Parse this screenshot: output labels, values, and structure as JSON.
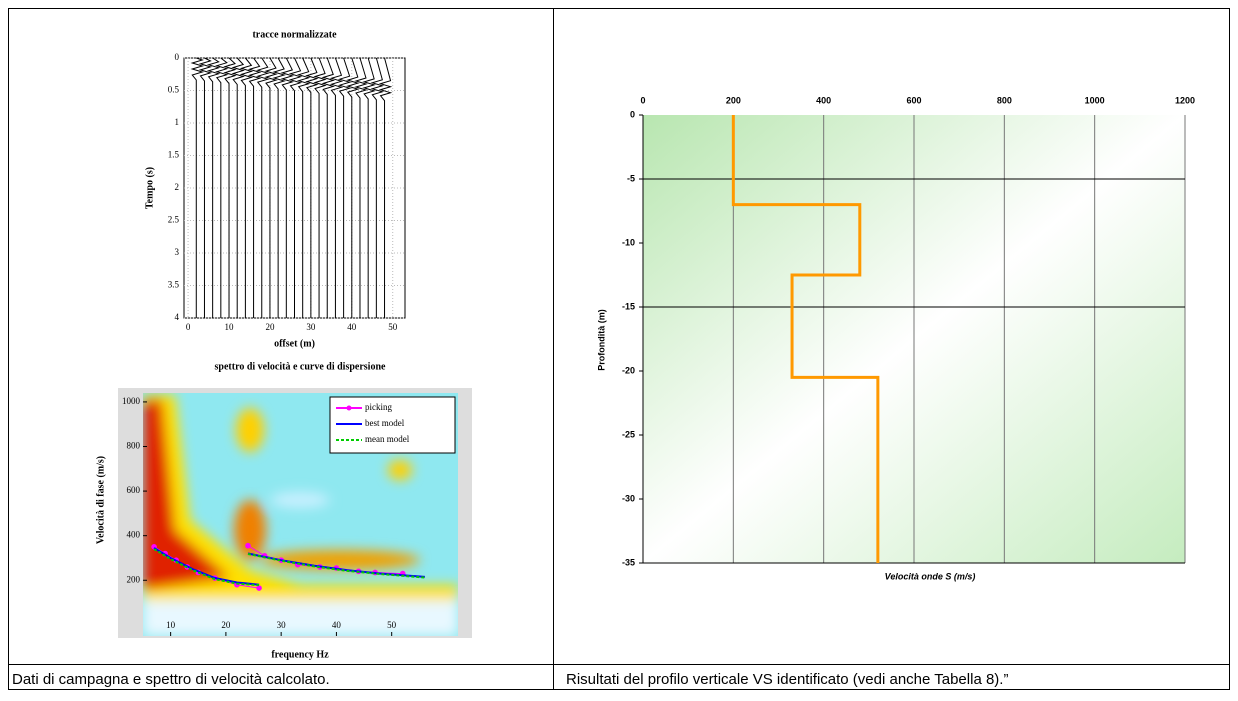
{
  "left_panel": {
    "seismogram": {
      "title": "tracce normalizzate",
      "xlabel": "offset (m)",
      "ylabel": "Tempo (s)",
      "xlim": [
        -1,
        53
      ],
      "ylim": [
        0,
        4
      ],
      "xticks": [
        0,
        10,
        20,
        30,
        40,
        50
      ],
      "yticks": [
        0,
        0.5,
        1,
        1.5,
        2,
        2.5,
        3,
        3.5,
        4
      ],
      "trace_offsets": [
        2,
        4,
        6,
        8,
        10,
        12,
        14,
        16,
        18,
        20,
        22,
        24,
        26,
        28,
        30,
        32,
        34,
        36,
        38,
        40,
        42,
        44,
        46,
        48
      ]
    },
    "dispersion": {
      "title": "spettro di velocità e curve di dispersione",
      "xlabel": "frequency Hz",
      "ylabel": "Velocità di fase (m/s)",
      "xlim": [
        5,
        62
      ],
      "ylim": [
        -50,
        1040
      ],
      "xticks": [
        10,
        20,
        30,
        40,
        50
      ],
      "yticks": [
        200,
        400,
        600,
        800,
        1000
      ],
      "series": [
        {
          "name": "picking",
          "color": "#ff00ff",
          "x": [
            7,
            9,
            11,
            13,
            15,
            18,
            22,
            26,
            null,
            24,
            27,
            30,
            33,
            37,
            40,
            44,
            47,
            52
          ],
          "values": [
            350,
            320,
            290,
            260,
            235,
            210,
            180,
            165,
            null,
            355,
            310,
            290,
            270,
            260,
            255,
            240,
            235,
            230
          ]
        },
        {
          "name": "best model",
          "color": "#0000ff",
          "x": [
            7,
            10,
            14,
            18,
            22,
            26,
            null,
            24,
            30,
            36,
            42,
            48,
            56
          ],
          "values": [
            345,
            300,
            250,
            210,
            190,
            180,
            null,
            320,
            290,
            265,
            245,
            230,
            215
          ]
        },
        {
          "name": "mean model",
          "color": "#00cc00",
          "x": [
            7,
            10,
            14,
            18,
            22,
            26,
            null,
            24,
            30,
            36,
            42,
            48,
            56
          ],
          "values": [
            340,
            295,
            245,
            205,
            185,
            178,
            null,
            318,
            288,
            262,
            242,
            228,
            212
          ]
        }
      ]
    }
  },
  "right_panel": {
    "profile": {
      "xlabel": "Velocità onde S (m/s)",
      "ylabel": "Profondità (m)",
      "xlim": [
        0,
        1200
      ],
      "ylim": [
        -35,
        0
      ],
      "xticks": [
        0,
        200,
        400,
        600,
        800,
        1000,
        1200
      ],
      "yticks": [
        0,
        -5,
        -10,
        -15,
        -20,
        -25,
        -30,
        -35
      ],
      "hgrid": [
        -5,
        -15
      ],
      "color": "#ff9900",
      "x": [
        200,
        200,
        480,
        480,
        330,
        330,
        520,
        520
      ],
      "values": [
        0,
        -7,
        -7,
        -12.5,
        -12.5,
        -20.5,
        -20.5,
        -35
      ]
    }
  },
  "captions": [
    "Dati di campagna e spettro di velocità calcolato.",
    "Risultati del profilo verticale VS identificato (vedi anche Tabella 8).”"
  ]
}
